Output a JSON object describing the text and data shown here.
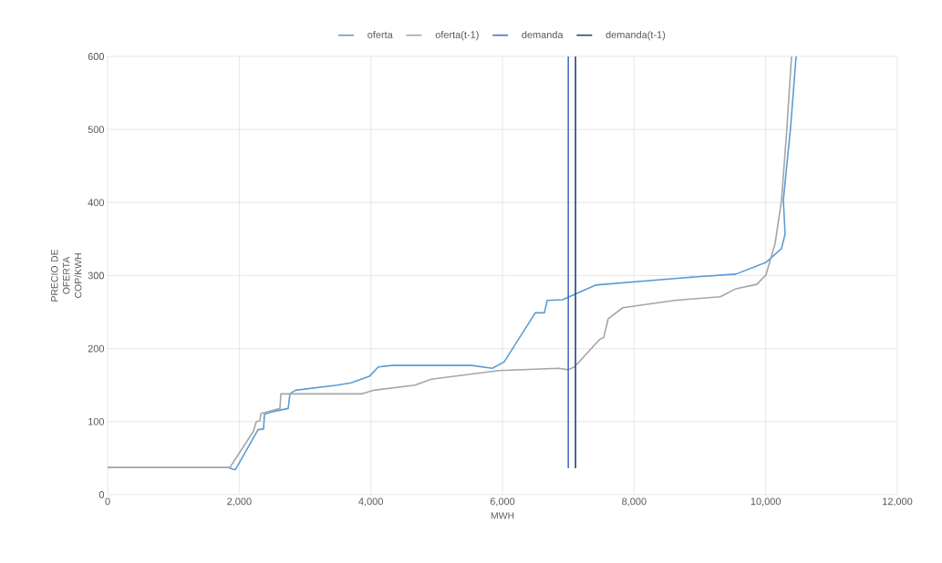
{
  "chart_data": {
    "type": "line",
    "xlabel": "MWH",
    "ylabel": "PRECIO DE OFERTA COP/KWH",
    "xlim": [
      0,
      12000
    ],
    "ylim": [
      0,
      600
    ],
    "xticks": [
      0,
      {
        "value": 2000,
        "label": "2,000"
      },
      {
        "value": 4000,
        "label": "4,000"
      },
      {
        "value": 6000,
        "label": "6,000"
      },
      {
        "value": 8000,
        "label": "8,000"
      },
      {
        "value": 10000,
        "label": "10,000"
      },
      {
        "value": 12000,
        "label": "12,000"
      }
    ],
    "yticks": [
      0,
      100,
      200,
      300,
      400,
      500,
      600
    ],
    "grid": true,
    "legend": "top",
    "marker": "none",
    "line_style": "solid",
    "series": [
      {
        "name": "oferta",
        "color": "#5b9bd5",
        "x": [
          0,
          1830,
          1940,
          2286,
          2370,
          2383,
          2522,
          2744,
          2770,
          2855,
          3490,
          3700,
          3977,
          4115,
          4323,
          5529,
          5847,
          6027,
          6499,
          6637,
          6679,
          6914,
          7413,
          8618,
          8896,
          9547,
          10004,
          10240,
          10295,
          10268,
          10378,
          10462
        ],
        "values": [
          37,
          37,
          34,
          89,
          90,
          110,
          114,
          118,
          138,
          143,
          150,
          153,
          162,
          175,
          177,
          177,
          173,
          182,
          249,
          249,
          266,
          267,
          287,
          296,
          298,
          302,
          318,
          337,
          357,
          403,
          503,
          600
        ]
      },
      {
        "name": "oferta(t-1)",
        "color": "#a5a5a5",
        "x": [
          0,
          1857,
          2217,
          2259,
          2314,
          2328,
          2619,
          2633,
          3866,
          4046,
          4670,
          4919,
          5944,
          6859,
          6997,
          7094,
          7482,
          7538,
          7607,
          7829,
          8618,
          9311,
          9547,
          9866,
          10004,
          10143,
          10240,
          10323,
          10392
        ],
        "values": [
          37,
          37,
          87,
          100,
          101,
          111,
          118,
          138,
          138,
          143,
          150,
          158,
          170,
          173,
          171,
          175,
          213,
          215,
          241,
          256,
          266,
          271,
          282,
          288,
          301,
          344,
          403,
          503,
          600
        ]
      },
      {
        "name": "demanda",
        "color": "#4472c4",
        "x": [
          7000,
          7000
        ],
        "values": [
          36,
          600
        ]
      },
      {
        "name": "demanda(t-1)",
        "color": "#264478",
        "x": [
          7110,
          7110
        ],
        "values": [
          36,
          600
        ]
      }
    ]
  }
}
